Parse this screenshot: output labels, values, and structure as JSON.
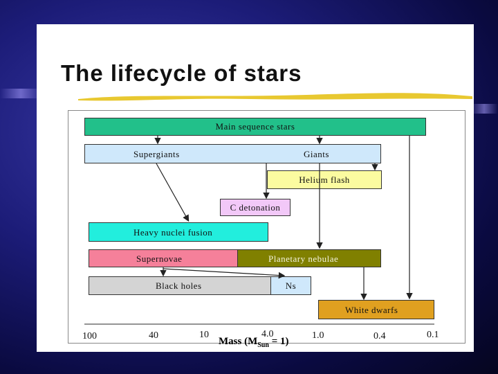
{
  "slide": {
    "title": "The lifecycle of stars"
  },
  "diagram": {
    "boxes": {
      "main_sequence": "Main sequence stars",
      "supergiants": "Supergiants",
      "giants": "Giants",
      "helium_flash": "Helium flash",
      "c_detonation": "C detonation",
      "heavy_nuclei_fusion": "Heavy nuclei fusion",
      "supernovae": "Supernovae",
      "planetary_nebulae": "Planetary nebulae",
      "black_holes": "Black holes",
      "ns": "Ns",
      "white_dwarfs": "White dwarfs"
    },
    "colors": {
      "main_sequence": "#22c08a",
      "supergiants": "#cfe8fb",
      "giants": "#cfe8fb",
      "helium_flash": "#fbfba0",
      "c_detonation": "#f2c8f8",
      "heavy_nuclei_fusion": "#22eedd",
      "supernovae": "#f5809a",
      "planetary_nebulae": "#808000",
      "black_holes": "#d4d4d4",
      "ns": "#cfe8fb",
      "white_dwarfs": "#e0a020",
      "title_underline": "#e8c830"
    },
    "axis": {
      "ticks": [
        "100",
        "40",
        "10",
        "4.0",
        "1.0",
        "0.4",
        "0.1"
      ],
      "title_main": "Mass (M",
      "title_sub": "Sun",
      "title_end": " = 1)"
    }
  }
}
